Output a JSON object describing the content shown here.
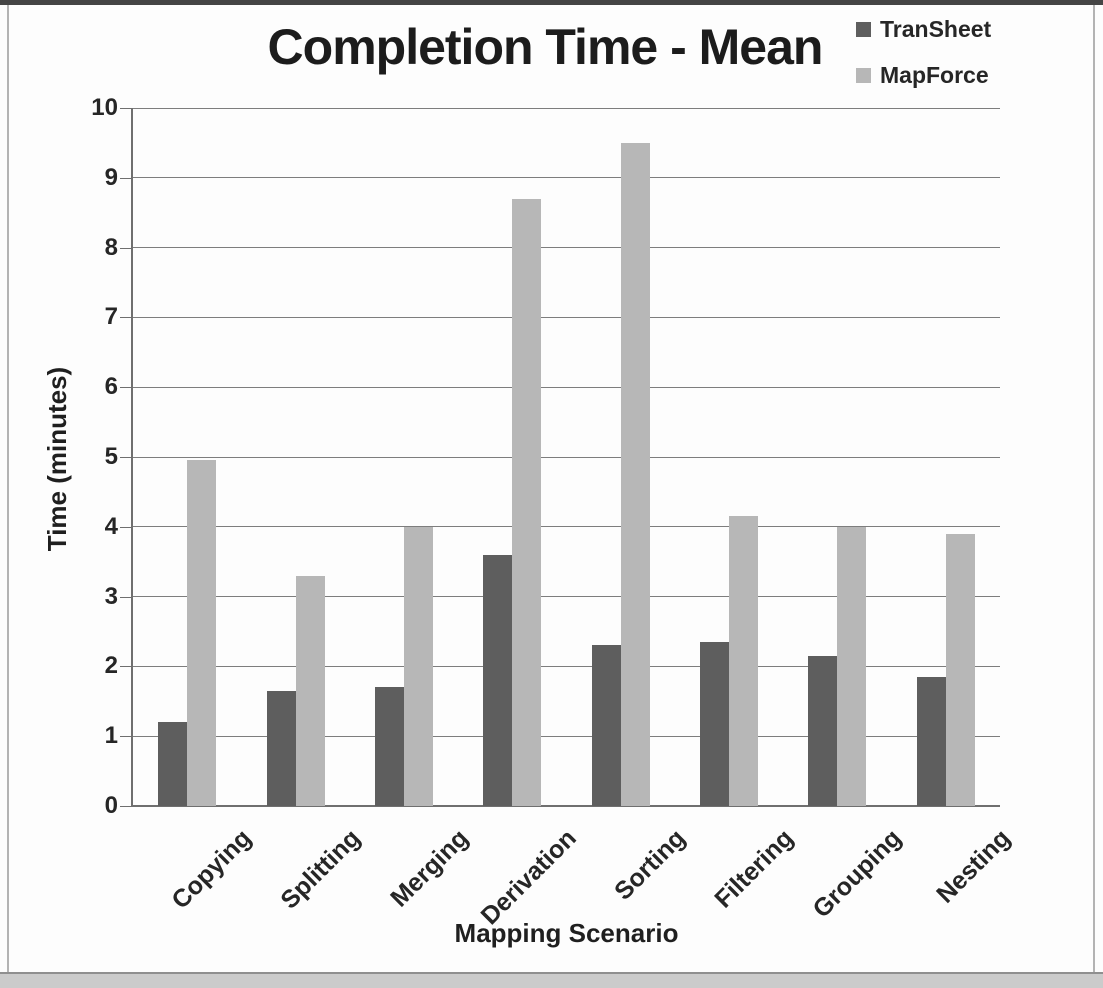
{
  "chart_data": {
    "type": "bar",
    "title": "Completion Time - Mean",
    "xlabel": "Mapping Scenario",
    "ylabel": "Time (minutes)",
    "categories": [
      "Copying",
      "Splitting",
      "Merging",
      "Derivation",
      "Sorting",
      "Filtering",
      "Grouping",
      "Nesting"
    ],
    "series": [
      {
        "name": "TranSheet",
        "color": "#5e5e5e",
        "values": [
          1.2,
          1.65,
          1.7,
          3.6,
          2.3,
          2.35,
          2.15,
          1.85
        ]
      },
      {
        "name": "MapForce",
        "color": "#b7b7b7",
        "values": [
          4.95,
          3.3,
          4.0,
          8.7,
          9.5,
          4.15,
          4.0,
          3.9
        ]
      }
    ],
    "ylim": [
      0,
      10
    ],
    "yticks": [
      0,
      1,
      2,
      3,
      4,
      5,
      6,
      7,
      8,
      9,
      10
    ],
    "grid": true,
    "legend_position": "top-right",
    "axis_color": "#7d7d7d",
    "text_color": "#262626"
  }
}
